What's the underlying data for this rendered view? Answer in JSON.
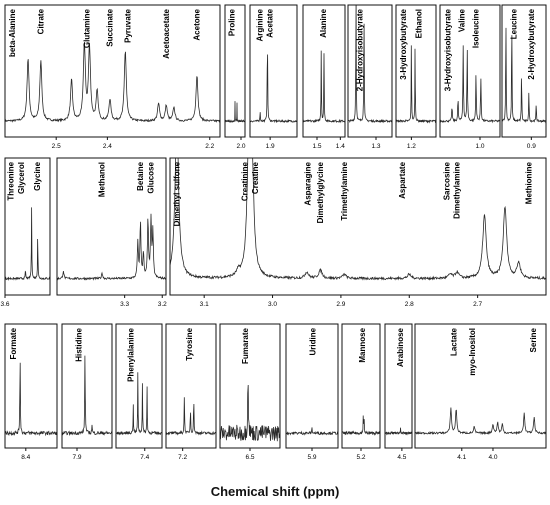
{
  "xaxis_title": "Chemical shift (ppm)",
  "colors": {
    "line": "#2a2a2a",
    "frame": "#111111",
    "text": "#000000"
  },
  "chart_data": [
    {
      "type": "line",
      "row": 1,
      "xlim": [
        2.6,
        2.18
      ],
      "ticks": [
        "2.5",
        "2.4",
        "2.2"
      ],
      "tick_values": [
        2.5,
        2.4,
        2.2
      ],
      "labels": [
        "beta-Alanine",
        "Citrate",
        "Glutamine",
        "Succinate",
        "Pyruvate",
        "Acetoacetate",
        "Acetone"
      ],
      "label_positions": [
        2.585,
        2.53,
        2.44,
        2.395,
        2.36,
        2.285,
        2.225
      ],
      "peaks": [
        [
          2.555,
          0.64
        ],
        [
          2.53,
          0.62
        ],
        [
          2.47,
          0.42
        ],
        [
          2.445,
          0.78
        ],
        [
          2.435,
          0.75
        ],
        [
          2.42,
          0.3
        ],
        [
          2.395,
          0.22
        ],
        [
          2.365,
          0.72
        ],
        [
          2.3,
          0.18
        ],
        [
          2.285,
          0.16
        ],
        [
          2.27,
          0.14
        ],
        [
          2.225,
          0.47
        ]
      ]
    },
    {
      "type": "line",
      "row": 1,
      "xlim": [
        2.08,
        1.98
      ],
      "ticks": [
        "2.0"
      ],
      "tick_values": [
        2.0
      ],
      "labels": [
        "Proline"
      ],
      "label_positions": [
        2.045
      ],
      "peaks": [
        [
          2.03,
          0.2
        ],
        [
          2.02,
          0.18
        ]
      ]
    },
    {
      "type": "line",
      "row": 1,
      "xlim": [
        1.96,
        1.82
      ],
      "ticks": [
        "1.9"
      ],
      "tick_values": [
        1.9
      ],
      "labels": [
        "Arginine",
        "Acetate"
      ],
      "label_positions": [
        1.93,
        1.9
      ],
      "peaks": [
        [
          1.93,
          0.1
        ],
        [
          1.908,
          0.95
        ]
      ]
    },
    {
      "type": "line",
      "row": 1,
      "xlim": [
        1.56,
        1.38
      ],
      "ticks": [
        "1.5",
        "1.4"
      ],
      "tick_values": [
        1.5,
        1.4
      ],
      "labels": [
        "Alanine"
      ],
      "label_positions": [
        1.472
      ],
      "peaks": [
        [
          1.482,
          0.72
        ],
        [
          1.47,
          0.7
        ]
      ]
    },
    {
      "type": "line",
      "row": 1,
      "xlim": [
        1.37,
        1.26
      ],
      "ticks": [
        "1.3"
      ],
      "tick_values": [
        1.3
      ],
      "labels": [
        "2-Hydroxyisobutyrate"
      ],
      "label_positions": [
        1.34
      ],
      "peaks": [
        [
          1.35,
          1.4
        ],
        [
          1.33,
          1.3
        ]
      ]
    },
    {
      "type": "line",
      "row": 1,
      "xlim": [
        1.25,
        1.12
      ],
      "ticks": [
        "1.2"
      ],
      "tick_values": [
        1.2
      ],
      "labels": [
        "3-Hydroxybutyrate",
        "Ethanol"
      ],
      "label_positions": [
        1.225,
        1.175
      ],
      "peaks": [
        [
          1.2,
          0.82
        ],
        [
          1.188,
          0.82
        ]
      ]
    },
    {
      "type": "line",
      "row": 1,
      "xlim": [
        1.1,
        0.95
      ],
      "ticks": [
        "1.0"
      ],
      "tick_values": [
        1.0
      ],
      "labels": [
        "3-Hydroxyisobutyrate",
        "Valine",
        "Isoleucine"
      ],
      "label_positions": [
        1.08,
        1.045,
        1.01
      ],
      "peaks": [
        [
          1.07,
          0.17
        ],
        [
          1.055,
          0.25
        ],
        [
          1.042,
          0.78
        ],
        [
          1.032,
          0.75
        ],
        [
          1.01,
          0.5
        ],
        [
          0.998,
          0.48
        ]
      ]
    },
    {
      "type": "line",
      "row": 1,
      "xlim": [
        0.96,
        0.87
      ],
      "ticks": [
        "0.9"
      ],
      "tick_values": [
        0.9
      ],
      "labels": [
        "Leucine",
        "2-Hydroxybutyrate"
      ],
      "label_positions": [
        0.935,
        0.9
      ],
      "peaks": [
        [
          0.952,
          1.2
        ],
        [
          0.94,
          1.1
        ],
        [
          0.92,
          0.55
        ],
        [
          0.905,
          0.35
        ],
        [
          0.89,
          0.2
        ]
      ]
    },
    {
      "type": "line",
      "row": 2,
      "xlim": [
        3.6,
        3.49
      ],
      "ticks": [
        "3.6"
      ],
      "tick_values": [
        3.6
      ],
      "labels": [
        "Threonine",
        "Glycerol",
        "Glycine"
      ],
      "label_positions": [
        3.585,
        3.56,
        3.52
      ],
      "peaks": [
        [
          3.55,
          0.1
        ],
        [
          3.535,
          0.72
        ],
        [
          3.52,
          0.46
        ]
      ]
    },
    {
      "type": "line",
      "row": 2,
      "xlim": [
        3.48,
        3.19
      ],
      "ticks": [
        "3.3",
        "3.2"
      ],
      "tick_values": [
        3.3,
        3.2
      ],
      "labels": [
        "Methanol",
        "Betaine",
        "Glucose"
      ],
      "label_positions": [
        3.36,
        3.258,
        3.23
      ],
      "peaks": [
        [
          3.463,
          0.08
        ],
        [
          3.36,
          0.06
        ],
        [
          3.265,
          0.35
        ],
        [
          3.258,
          0.55
        ],
        [
          3.25,
          0.25
        ],
        [
          3.238,
          0.58
        ],
        [
          3.23,
          0.58
        ],
        [
          3.225,
          0.45
        ]
      ]
    },
    {
      "type": "line",
      "row": 2,
      "xlim": [
        3.15,
        2.6
      ],
      "ticks": [
        "3.1",
        "3.0",
        "2.9",
        "2.8",
        "2.7"
      ],
      "tick_values": [
        3.1,
        3.0,
        2.9,
        2.8,
        2.7
      ],
      "labels": [
        "Dimethyl sulfone",
        "Creatinine",
        "Creatine",
        "Asparagine",
        "Dimethylglycine",
        "Trimethylamine",
        "Aspartate",
        "Sarcosine",
        "Dimethylamine",
        "Methionine"
      ],
      "label_positions": [
        3.14,
        3.04,
        3.025,
        2.948,
        2.93,
        2.895,
        2.81,
        2.745,
        2.73,
        2.625
      ],
      "peaks": [
        [
          3.14,
          1.6
        ],
        [
          3.05,
          0.05
        ],
        [
          3.035,
          1.1
        ],
        [
          3.03,
          1.05
        ],
        [
          2.95,
          0.06
        ],
        [
          2.93,
          0.08
        ],
        [
          2.895,
          0.04
        ],
        [
          2.8,
          0.04
        ],
        [
          2.74,
          0.04
        ],
        [
          2.73,
          0.06
        ],
        [
          2.69,
          0.62
        ],
        [
          2.66,
          0.7
        ],
        [
          2.64,
          0.15
        ]
      ]
    },
    {
      "type": "line",
      "row": 3,
      "xlim": [
        8.6,
        8.1
      ],
      "ticks": [
        "8.4"
      ],
      "tick_values": [
        8.4
      ],
      "labels": [
        "Formate"
      ],
      "label_positions": [
        8.52
      ],
      "peaks": [
        [
          8.455,
          0.84
        ]
      ]
    },
    {
      "type": "line",
      "row": 3,
      "xlim": [
        8.05,
        7.55
      ],
      "ticks": [
        "7.9"
      ],
      "tick_values": [
        7.9
      ],
      "labels": [
        "Histidine"
      ],
      "label_positions": [
        7.88
      ],
      "peaks": [
        [
          7.82,
          0.92
        ],
        [
          7.75,
          0.1
        ]
      ]
    },
    {
      "type": "line",
      "row": 3,
      "xlim": [
        7.65,
        7.25
      ],
      "ticks": [
        "7.4"
      ],
      "tick_values": [
        7.4
      ],
      "labels": [
        "Phenylalanine"
      ],
      "label_positions": [
        7.52
      ],
      "peaks": [
        [
          7.5,
          0.3
        ],
        [
          7.46,
          0.66
        ],
        [
          7.42,
          0.55
        ],
        [
          7.38,
          0.5
        ]
      ]
    },
    {
      "type": "line",
      "row": 3,
      "xlim": [
        7.35,
        6.9
      ],
      "ticks": [
        "7.2"
      ],
      "tick_values": [
        7.2
      ],
      "labels": [
        "Tyrosine"
      ],
      "label_positions": [
        7.14
      ],
      "peaks": [
        [
          7.185,
          0.38
        ],
        [
          7.13,
          0.28
        ],
        [
          7.1,
          0.4
        ]
      ]
    },
    {
      "type": "line",
      "row": 3,
      "xlim": [
        6.8,
        6.2
      ],
      "ticks": [
        "6.5"
      ],
      "tick_values": [
        6.5
      ],
      "labels": [
        "Fumarate"
      ],
      "label_positions": [
        6.545
      ],
      "peaks": [
        [
          6.52,
          0.78
        ]
      ]
    },
    {
      "type": "line",
      "row": 3,
      "xlim": [
        6.15,
        5.65
      ],
      "ticks": [
        "5.9"
      ],
      "tick_values": [
        5.9
      ],
      "labels": [
        "Uridine"
      ],
      "label_positions": [
        5.89
      ],
      "peaks": [
        [
          5.9,
          0.06
        ]
      ]
    },
    {
      "type": "line",
      "row": 3,
      "xlim": [
        5.45,
        4.95
      ],
      "ticks": [
        "5.2"
      ],
      "tick_values": [
        5.2
      ],
      "labels": [
        "Mannose"
      ],
      "label_positions": [
        5.18
      ],
      "peaks": [
        [
          5.17,
          0.2
        ],
        [
          5.16,
          0.18
        ]
      ]
    },
    {
      "type": "line",
      "row": 3,
      "xlim": [
        4.75,
        4.35
      ],
      "ticks": [
        "4.5"
      ],
      "tick_values": [
        4.5
      ],
      "labels": [
        "Arabinose"
      ],
      "label_positions": [
        4.52
      ],
      "peaks": [
        [
          4.52,
          0.06
        ]
      ]
    },
    {
      "type": "line",
      "row": 3,
      "xlim": [
        4.25,
        3.83
      ],
      "ticks": [
        "4.1",
        "4.0"
      ],
      "tick_values": [
        4.1,
        4.0
      ],
      "labels": [
        "Lactate",
        "myo-Inositol",
        "Serine"
      ],
      "label_positions": [
        4.125,
        4.065,
        3.87
      ],
      "peaks": [
        [
          4.135,
          0.28
        ],
        [
          4.118,
          0.27
        ],
        [
          4.06,
          0.07
        ],
        [
          4.0,
          0.1
        ],
        [
          3.985,
          0.12
        ],
        [
          3.97,
          0.1
        ],
        [
          3.9,
          0.22
        ],
        [
          3.868,
          0.18
        ]
      ]
    }
  ]
}
